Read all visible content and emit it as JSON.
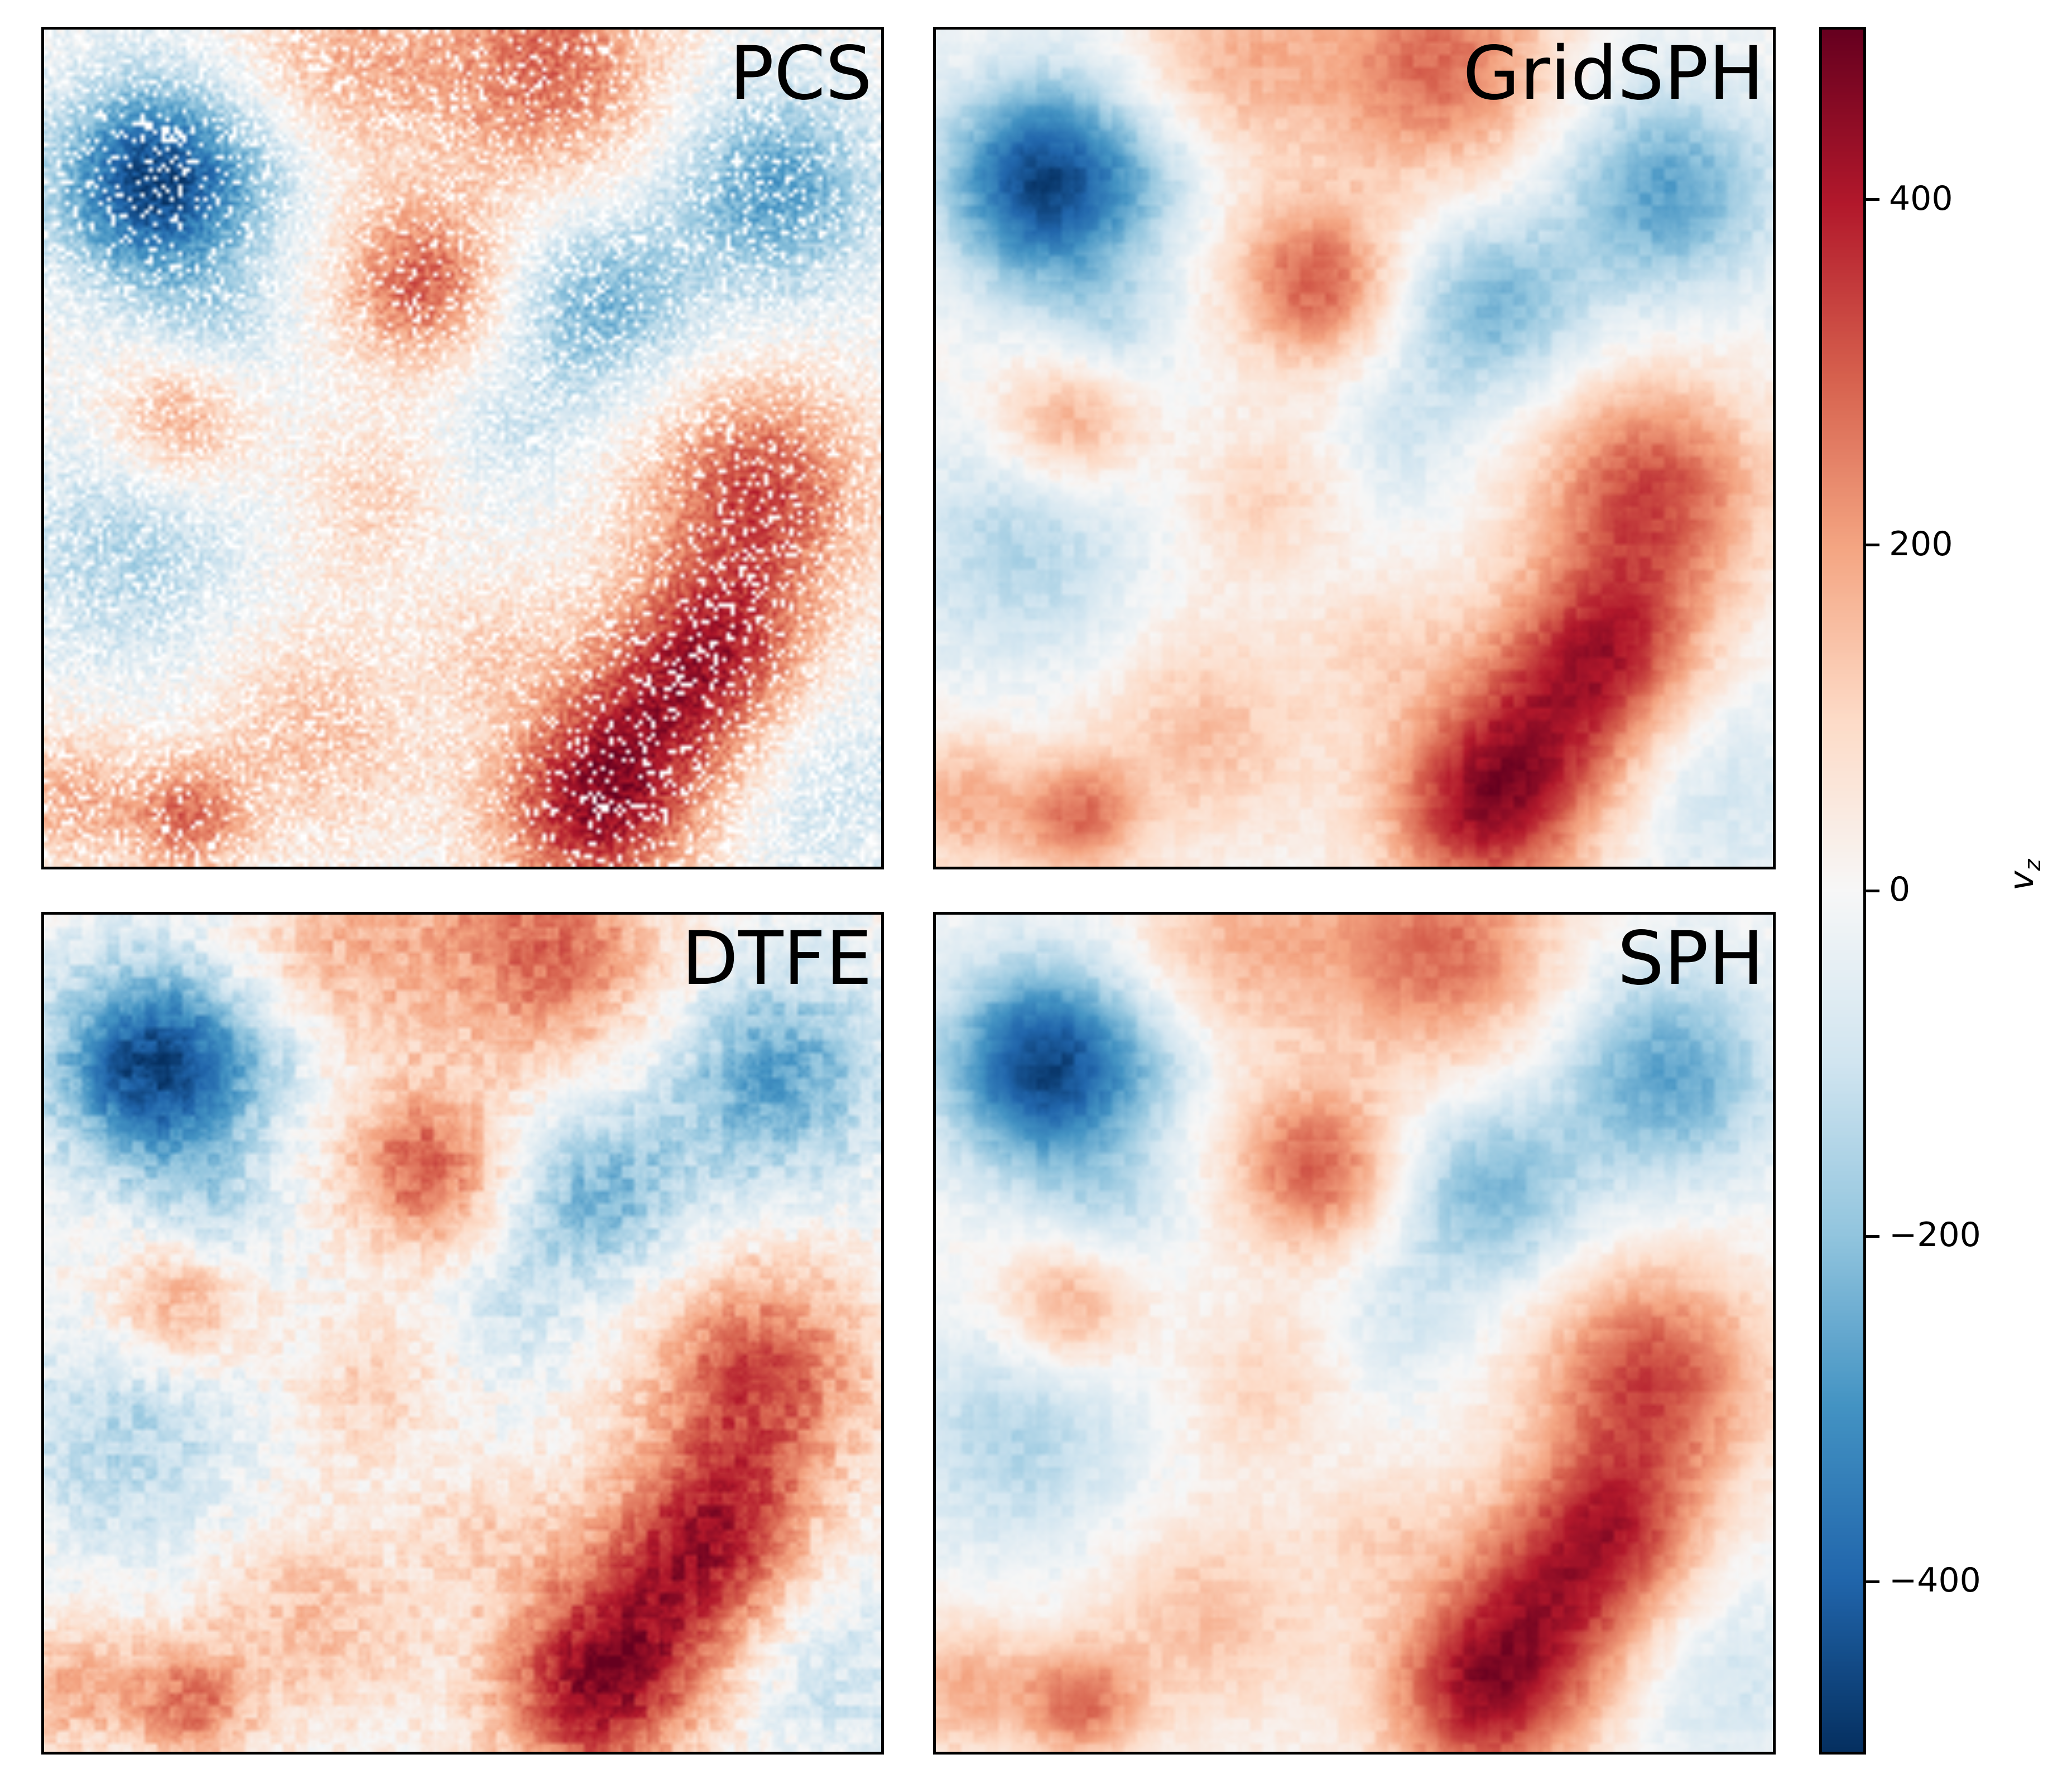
{
  "chart_data": {
    "type": "heatmap",
    "panels": [
      {
        "title": "PCS"
      },
      {
        "title": "GridSPH"
      },
      {
        "title": "DTFE"
      },
      {
        "title": "SPH"
      }
    ],
    "colorbar": {
      "label_symbol": "v",
      "label_subscript": "z",
      "colormap": "RdBu_r",
      "range": [
        -500,
        500
      ],
      "ticks": [
        -400,
        -200,
        0,
        200,
        400
      ],
      "tick_labels": [
        "−400",
        "−200",
        "0",
        "200",
        "400"
      ]
    },
    "axes_ticks_visible": false,
    "grid": false
  }
}
